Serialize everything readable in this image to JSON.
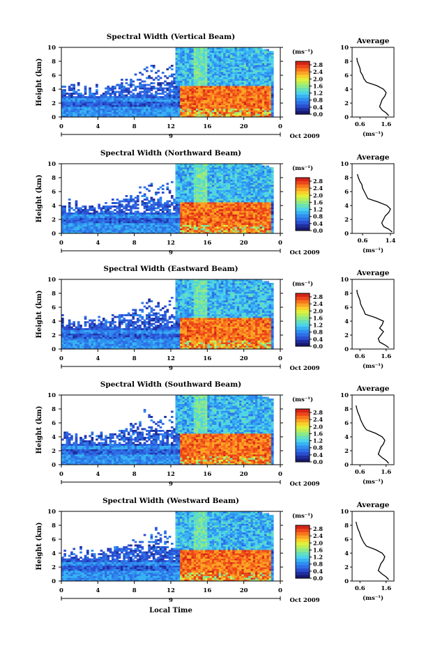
{
  "figure": {
    "xlabel": "Local Time",
    "date_label": "Oct 2009",
    "day_marker": "9",
    "colorbar_unit": "(ms⁻¹)",
    "average_title": "Average",
    "average_xlabel": "(ms⁻¹)",
    "ylabel": "Height (km)"
  },
  "colormap": [
    "#1a1a6e",
    "#1f2f9e",
    "#2a4fd0",
    "#2e6fe6",
    "#2f8ff0",
    "#39b3f2",
    "#4fd3e8",
    "#66e0b8",
    "#8ee88a",
    "#b8ee5c",
    "#e0f03a",
    "#f8d02c",
    "#fca424",
    "#f8741e",
    "#ec461a",
    "#d42418"
  ],
  "chart_data": [
    {
      "type": "heatmap",
      "title": "Spectral Width (Vertical Beam)",
      "ylabel": "Height (km)",
      "xlabel": "",
      "x_ticks": [
        "0",
        "4",
        "8",
        "12",
        "16",
        "20",
        "0"
      ],
      "y_ticks": [
        "0",
        "2",
        "4",
        "6",
        "8",
        "10"
      ],
      "xlim": [
        0,
        24
      ],
      "ylim": [
        0,
        10
      ],
      "colorbar": {
        "label": "(ms⁻¹)",
        "ticks": [
          "0.0",
          "0.4",
          "0.8",
          "1.2",
          "1.6",
          "2.0",
          "2.4",
          "2.8"
        ],
        "range": [
          0,
          3.0
        ]
      },
      "average": {
        "title": "Average",
        "xlabel": "(ms⁻¹)",
        "x_ticks": [
          "0.6",
          "1.6"
        ],
        "xlim": [
          0.3,
          1.9
        ],
        "y_ticks": [
          "0",
          "2",
          "4",
          "6",
          "8",
          "10"
        ],
        "heights": [
          0.2,
          0.6,
          1.0,
          1.5,
          2.0,
          2.5,
          3.0,
          3.5,
          4.0,
          4.5,
          5.0,
          5.5,
          6.0,
          6.5,
          7.0,
          7.5,
          8.0,
          8.5
        ],
        "values": [
          1.7,
          1.6,
          1.45,
          1.35,
          1.4,
          1.45,
          1.55,
          1.6,
          1.5,
          1.25,
          0.85,
          0.75,
          0.7,
          0.62,
          0.6,
          0.55,
          0.5,
          0.48
        ]
      }
    },
    {
      "type": "heatmap",
      "title": "Spectral Width (Northward Beam)",
      "ylabel": "Height (km)",
      "xlabel": "",
      "x_ticks": [
        "0",
        "4",
        "8",
        "12",
        "16",
        "20",
        "0"
      ],
      "y_ticks": [
        "0",
        "2",
        "4",
        "6",
        "8",
        "10"
      ],
      "xlim": [
        0,
        24
      ],
      "ylim": [
        0,
        10
      ],
      "colorbar": {
        "label": "(ms⁻¹)",
        "ticks": [
          "0.0",
          "0.4",
          "0.8",
          "1.2",
          "1.6",
          "2.0",
          "2.4",
          "2.8"
        ],
        "range": [
          0,
          3.0
        ]
      },
      "average": {
        "title": "Average",
        "xlabel": "(ms⁻¹)",
        "x_ticks": [
          "0.6",
          "1.4"
        ],
        "xlim": [
          0.3,
          1.5
        ],
        "y_ticks": [
          "0",
          "2",
          "4",
          "6",
          "8",
          "10"
        ],
        "heights": [
          0.2,
          0.6,
          1.0,
          1.5,
          2.0,
          2.5,
          3.0,
          3.5,
          4.0,
          4.5,
          5.0,
          5.5,
          6.0,
          6.5,
          7.0,
          7.5,
          8.0,
          8.5
        ],
        "values": [
          1.45,
          1.35,
          1.2,
          1.15,
          1.2,
          1.25,
          1.35,
          1.4,
          1.3,
          1.05,
          0.75,
          0.7,
          0.65,
          0.6,
          0.58,
          0.52,
          0.48,
          0.45
        ]
      }
    },
    {
      "type": "heatmap",
      "title": "Spectral Width (Eastward Beam)",
      "ylabel": "Height (km)",
      "xlabel": "",
      "x_ticks": [
        "0",
        "4",
        "8",
        "12",
        "16",
        "20",
        "0"
      ],
      "y_ticks": [
        "0",
        "2",
        "4",
        "6",
        "8",
        "10"
      ],
      "xlim": [
        0,
        24
      ],
      "ylim": [
        0,
        10
      ],
      "colorbar": {
        "label": "(ms⁻¹)",
        "ticks": [
          "0.0",
          "0.4",
          "0.8",
          "1.2",
          "1.6",
          "2.0",
          "2.4",
          "2.8"
        ],
        "range": [
          0,
          3.0
        ]
      },
      "average": {
        "title": "Average",
        "xlabel": "(ms⁻¹)",
        "x_ticks": [
          "0.6",
          "1.6"
        ],
        "xlim": [
          0.3,
          1.9
        ],
        "y_ticks": [
          "0",
          "2",
          "4",
          "6",
          "8",
          "10"
        ],
        "heights": [
          0.2,
          0.6,
          1.0,
          1.5,
          2.0,
          2.5,
          3.0,
          3.5,
          4.0,
          4.5,
          5.0,
          5.5,
          6.0,
          6.5,
          7.0,
          7.5,
          8.0,
          8.5
        ],
        "values": [
          1.7,
          1.55,
          1.35,
          1.3,
          1.4,
          1.5,
          1.35,
          1.45,
          1.5,
          1.2,
          0.8,
          0.75,
          0.68,
          0.62,
          0.6,
          0.55,
          0.5,
          0.48
        ]
      }
    },
    {
      "type": "heatmap",
      "title": "Spectral Width (Southward Beam)",
      "ylabel": "Height (km)",
      "xlabel": "",
      "x_ticks": [
        "0",
        "4",
        "8",
        "12",
        "16",
        "20",
        "0"
      ],
      "y_ticks": [
        "0",
        "2",
        "4",
        "6",
        "8",
        "10"
      ],
      "xlim": [
        0,
        24
      ],
      "ylim": [
        0,
        10
      ],
      "colorbar": {
        "label": "(ms⁻¹)",
        "ticks": [
          "0.0",
          "0.4",
          "0.8",
          "1.2",
          "1.6",
          "2.0",
          "2.4",
          "2.8"
        ],
        "range": [
          0,
          3.0
        ]
      },
      "average": {
        "title": "Average",
        "xlabel": "(ms⁻¹)",
        "x_ticks": [
          "0.6",
          "1.6"
        ],
        "xlim": [
          0.3,
          1.9
        ],
        "y_ticks": [
          "0",
          "2",
          "4",
          "6",
          "8",
          "10"
        ],
        "heights": [
          0.2,
          0.6,
          1.0,
          1.5,
          2.0,
          2.5,
          3.0,
          3.5,
          4.0,
          4.5,
          5.0,
          5.5,
          6.0,
          6.5,
          7.0,
          7.5,
          8.0,
          8.5
        ],
        "values": [
          1.7,
          1.6,
          1.45,
          1.3,
          1.35,
          1.4,
          1.5,
          1.55,
          1.45,
          1.2,
          0.85,
          0.75,
          0.68,
          0.62,
          0.58,
          0.52,
          0.48,
          0.45
        ]
      }
    },
    {
      "type": "heatmap",
      "title": "Spectral Width (Westward Beam)",
      "ylabel": "Height (km)",
      "xlabel": "Local Time",
      "x_ticks": [
        "0",
        "4",
        "8",
        "12",
        "16",
        "20",
        "0"
      ],
      "y_ticks": [
        "0",
        "2",
        "4",
        "6",
        "8",
        "10"
      ],
      "xlim": [
        0,
        24
      ],
      "ylim": [
        0,
        10
      ],
      "colorbar": {
        "label": "(ms⁻¹)",
        "ticks": [
          "0.0",
          "0.4",
          "0.8",
          "1.2",
          "1.6",
          "2.0",
          "2.4",
          "2.8"
        ],
        "range": [
          0,
          3.0
        ]
      },
      "average": {
        "title": "Average",
        "xlabel": "(ms⁻¹)",
        "x_ticks": [
          "0.6",
          "1.6"
        ],
        "xlim": [
          0.3,
          1.9
        ],
        "y_ticks": [
          "0",
          "2",
          "4",
          "6",
          "8",
          "10"
        ],
        "heights": [
          0.2,
          0.6,
          1.0,
          1.5,
          2.0,
          2.5,
          3.0,
          3.5,
          4.0,
          4.5,
          5.0,
          5.5,
          6.0,
          6.5,
          7.0,
          7.5,
          8.0,
          8.5
        ],
        "values": [
          1.7,
          1.6,
          1.45,
          1.3,
          1.35,
          1.4,
          1.5,
          1.55,
          1.45,
          1.2,
          0.85,
          0.75,
          0.68,
          0.62,
          0.58,
          0.52,
          0.48,
          0.45
        ]
      }
    }
  ]
}
